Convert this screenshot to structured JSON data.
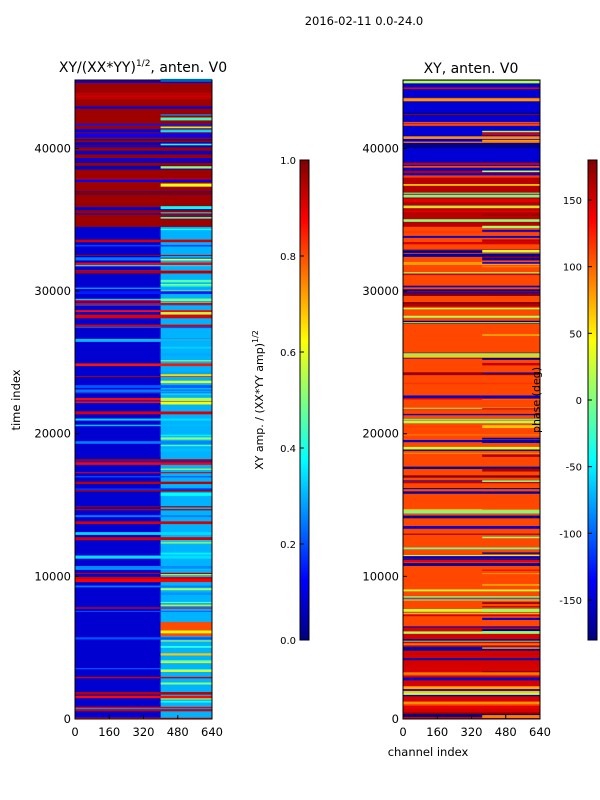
{
  "figure_title": "2016-02-11 0.0-24.0",
  "chart_data": [
    {
      "type": "heatmap",
      "title": "XY/(XX*YY)^{1/2}, anten. V0",
      "title_main": "XY/(XX*YY)",
      "title_sup": "1/2",
      "title_tail": ", anten. V0",
      "xlabel": "",
      "ylabel": "time index",
      "xlim": [
        0,
        640
      ],
      "ylim": [
        0,
        44800
      ],
      "xticks": [
        "0",
        "160",
        "320",
        "480",
        "640"
      ],
      "yticks": [
        "0",
        "10000",
        "20000",
        "30000",
        "40000"
      ],
      "colormap": "jet",
      "colorbar": {
        "label": "XY amp. / (XX*YY amp)^{1/2}",
        "label_main": "XY amp. / (XX*YY amp)",
        "label_sup": "1/2",
        "range": [
          0.0,
          1.0
        ],
        "ticks": [
          "0.0",
          "0.2",
          "0.4",
          "0.6",
          "0.8",
          "1.0"
        ]
      },
      "regions": [
        {
          "time": [
            34500,
            44800
          ],
          "channels": [
            0,
            640
          ],
          "value": 0.97
        },
        {
          "time": [
            0,
            34500
          ],
          "channels": [
            0,
            640
          ],
          "value": 0.08
        },
        {
          "time": [
            0,
            34500
          ],
          "channels": [
            400,
            640
          ],
          "value": 0.3
        },
        {
          "time": [
            5800,
            6800
          ],
          "channels": [
            400,
            640
          ],
          "value": 0.8
        }
      ]
    },
    {
      "type": "heatmap",
      "title": "XY, anten. V0",
      "xlabel": "channel index",
      "ylabel": "",
      "xlim": [
        0,
        640
      ],
      "ylim": [
        0,
        44800
      ],
      "xticks": [
        "0",
        "160",
        "320",
        "480",
        "640"
      ],
      "yticks": [
        "0",
        "10000",
        "20000",
        "30000",
        "40000"
      ],
      "colormap": "jet",
      "colorbar": {
        "label": "phase (deg)",
        "range": [
          -180,
          180
        ],
        "ticks": [
          "-150",
          "-100",
          "-50",
          "0",
          "50",
          "100",
          "150"
        ]
      },
      "regions": [
        {
          "time": [
            38000,
            44800
          ],
          "channels": [
            0,
            640
          ],
          "value": -150
        },
        {
          "time": [
            34500,
            38000
          ],
          "channels": [
            0,
            640
          ],
          "value": 160
        },
        {
          "time": [
            6500,
            34500
          ],
          "channels": [
            0,
            640
          ],
          "value": 110
        },
        {
          "time": [
            0,
            6500
          ],
          "channels": [
            0,
            640
          ],
          "value": 150
        }
      ]
    }
  ]
}
